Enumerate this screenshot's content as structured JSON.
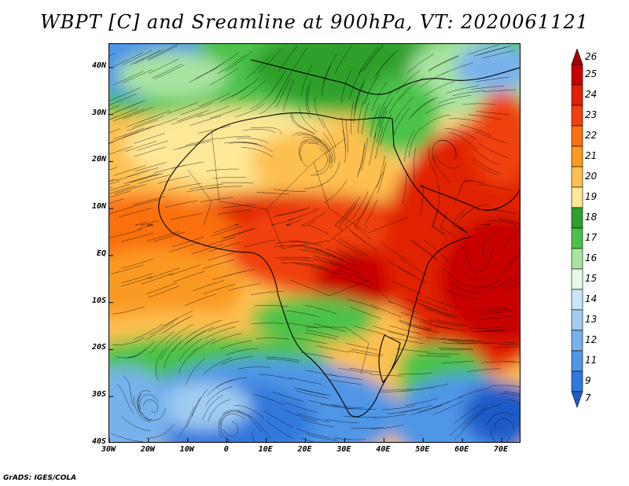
{
  "title": "WBPT [C] and Sreamline at 900hPa, VT: 2020061121",
  "footer": "GrADS: IGES/COLA",
  "map": {
    "projection": "lat-lon",
    "lon_range": [
      -30,
      75
    ],
    "lat_range": [
      -40,
      45
    ],
    "field": "wet-bulb potential temperature",
    "overlay": "streamlines"
  },
  "y_axis": {
    "ticks": [
      {
        "label": "40N",
        "lat": 40
      },
      {
        "label": "30N",
        "lat": 30
      },
      {
        "label": "20N",
        "lat": 20
      },
      {
        "label": "10N",
        "lat": 10
      },
      {
        "label": "EQ",
        "lat": 0
      },
      {
        "label": "10S",
        "lat": -10
      },
      {
        "label": "20S",
        "lat": -20
      },
      {
        "label": "30S",
        "lat": -30
      },
      {
        "label": "40S",
        "lat": -40
      }
    ]
  },
  "x_axis": {
    "ticks": [
      {
        "label": "30W",
        "lon": -30
      },
      {
        "label": "20W",
        "lon": -20
      },
      {
        "label": "10W",
        "lon": -10
      },
      {
        "label": "0",
        "lon": 0
      },
      {
        "label": "10E",
        "lon": 10
      },
      {
        "label": "20E",
        "lon": 20
      },
      {
        "label": "30E",
        "lon": 30
      },
      {
        "label": "40E",
        "lon": 40
      },
      {
        "label": "50E",
        "lon": 50
      },
      {
        "label": "60E",
        "lon": 60
      },
      {
        "label": "70E",
        "lon": 70
      }
    ]
  },
  "colorbar": {
    "levels": [
      {
        "label": "26",
        "color": "#a50000"
      },
      {
        "label": "25",
        "color": "#c80000"
      },
      {
        "label": "24",
        "color": "#e02000"
      },
      {
        "label": "23",
        "color": "#f04010"
      },
      {
        "label": "22",
        "color": "#fa7010"
      },
      {
        "label": "21",
        "color": "#fb9a20"
      },
      {
        "label": "20",
        "color": "#fdc050"
      },
      {
        "label": "19",
        "color": "#fde898"
      },
      {
        "label": "18",
        "color": "#2ea02c"
      },
      {
        "label": "17",
        "color": "#4cc24a"
      },
      {
        "label": "16",
        "color": "#a8e4a0"
      },
      {
        "label": "15",
        "color": "#e6fae6"
      },
      {
        "label": "14",
        "color": "#c8e6f8"
      },
      {
        "label": "13",
        "color": "#a0ccf2"
      },
      {
        "label": "12",
        "color": "#78b2ec"
      },
      {
        "label": "11",
        "color": "#5096e6"
      },
      {
        "label": "9",
        "color": "#3078dc"
      },
      {
        "label": "7",
        "color": "#1e5cc8"
      }
    ]
  }
}
